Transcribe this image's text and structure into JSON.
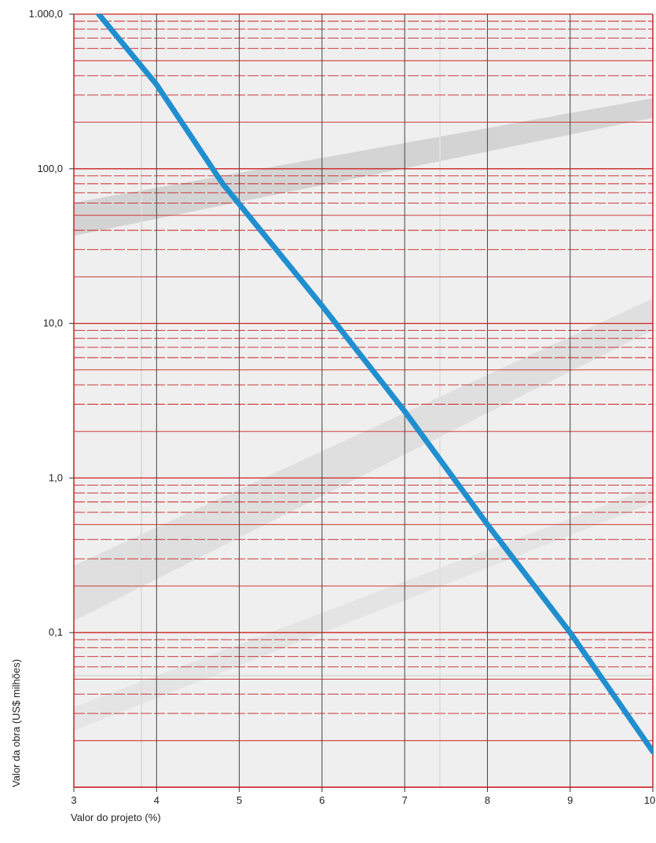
{
  "chart_data": {
    "type": "line",
    "title": "",
    "xlabel": "Valor do projeto (%)",
    "ylabel": "Valor da obra (US$ milhões)",
    "x_scale": "linear",
    "y_scale": "log",
    "xlim": [
      3,
      10
    ],
    "ylim": [
      0.01,
      1000
    ],
    "x_ticks": [
      3,
      4,
      5,
      6,
      7,
      8,
      9,
      10
    ],
    "x_tick_labels": [
      "3",
      "4",
      "5",
      "6",
      "7",
      "8",
      "9",
      "10"
    ],
    "y_ticks": [
      0.1,
      1,
      10,
      100,
      1000
    ],
    "y_tick_labels": [
      "0,1",
      "1,0",
      "10,0",
      "100,0",
      "1.000,0"
    ],
    "grid": true,
    "series": [
      {
        "x": [
          3.3,
          4.0,
          4.8,
          6.0,
          7.0,
          8.0,
          9.0,
          10.0
        ],
        "y": [
          1000,
          350,
          80,
          13,
          2.7,
          0.5,
          0.1,
          0.017
        ],
        "color": "#1f8fcf"
      }
    ],
    "colors": {
      "grid_minor": "#cc2222",
      "grid_major": "#444444",
      "line": "#1f8fcf"
    }
  }
}
